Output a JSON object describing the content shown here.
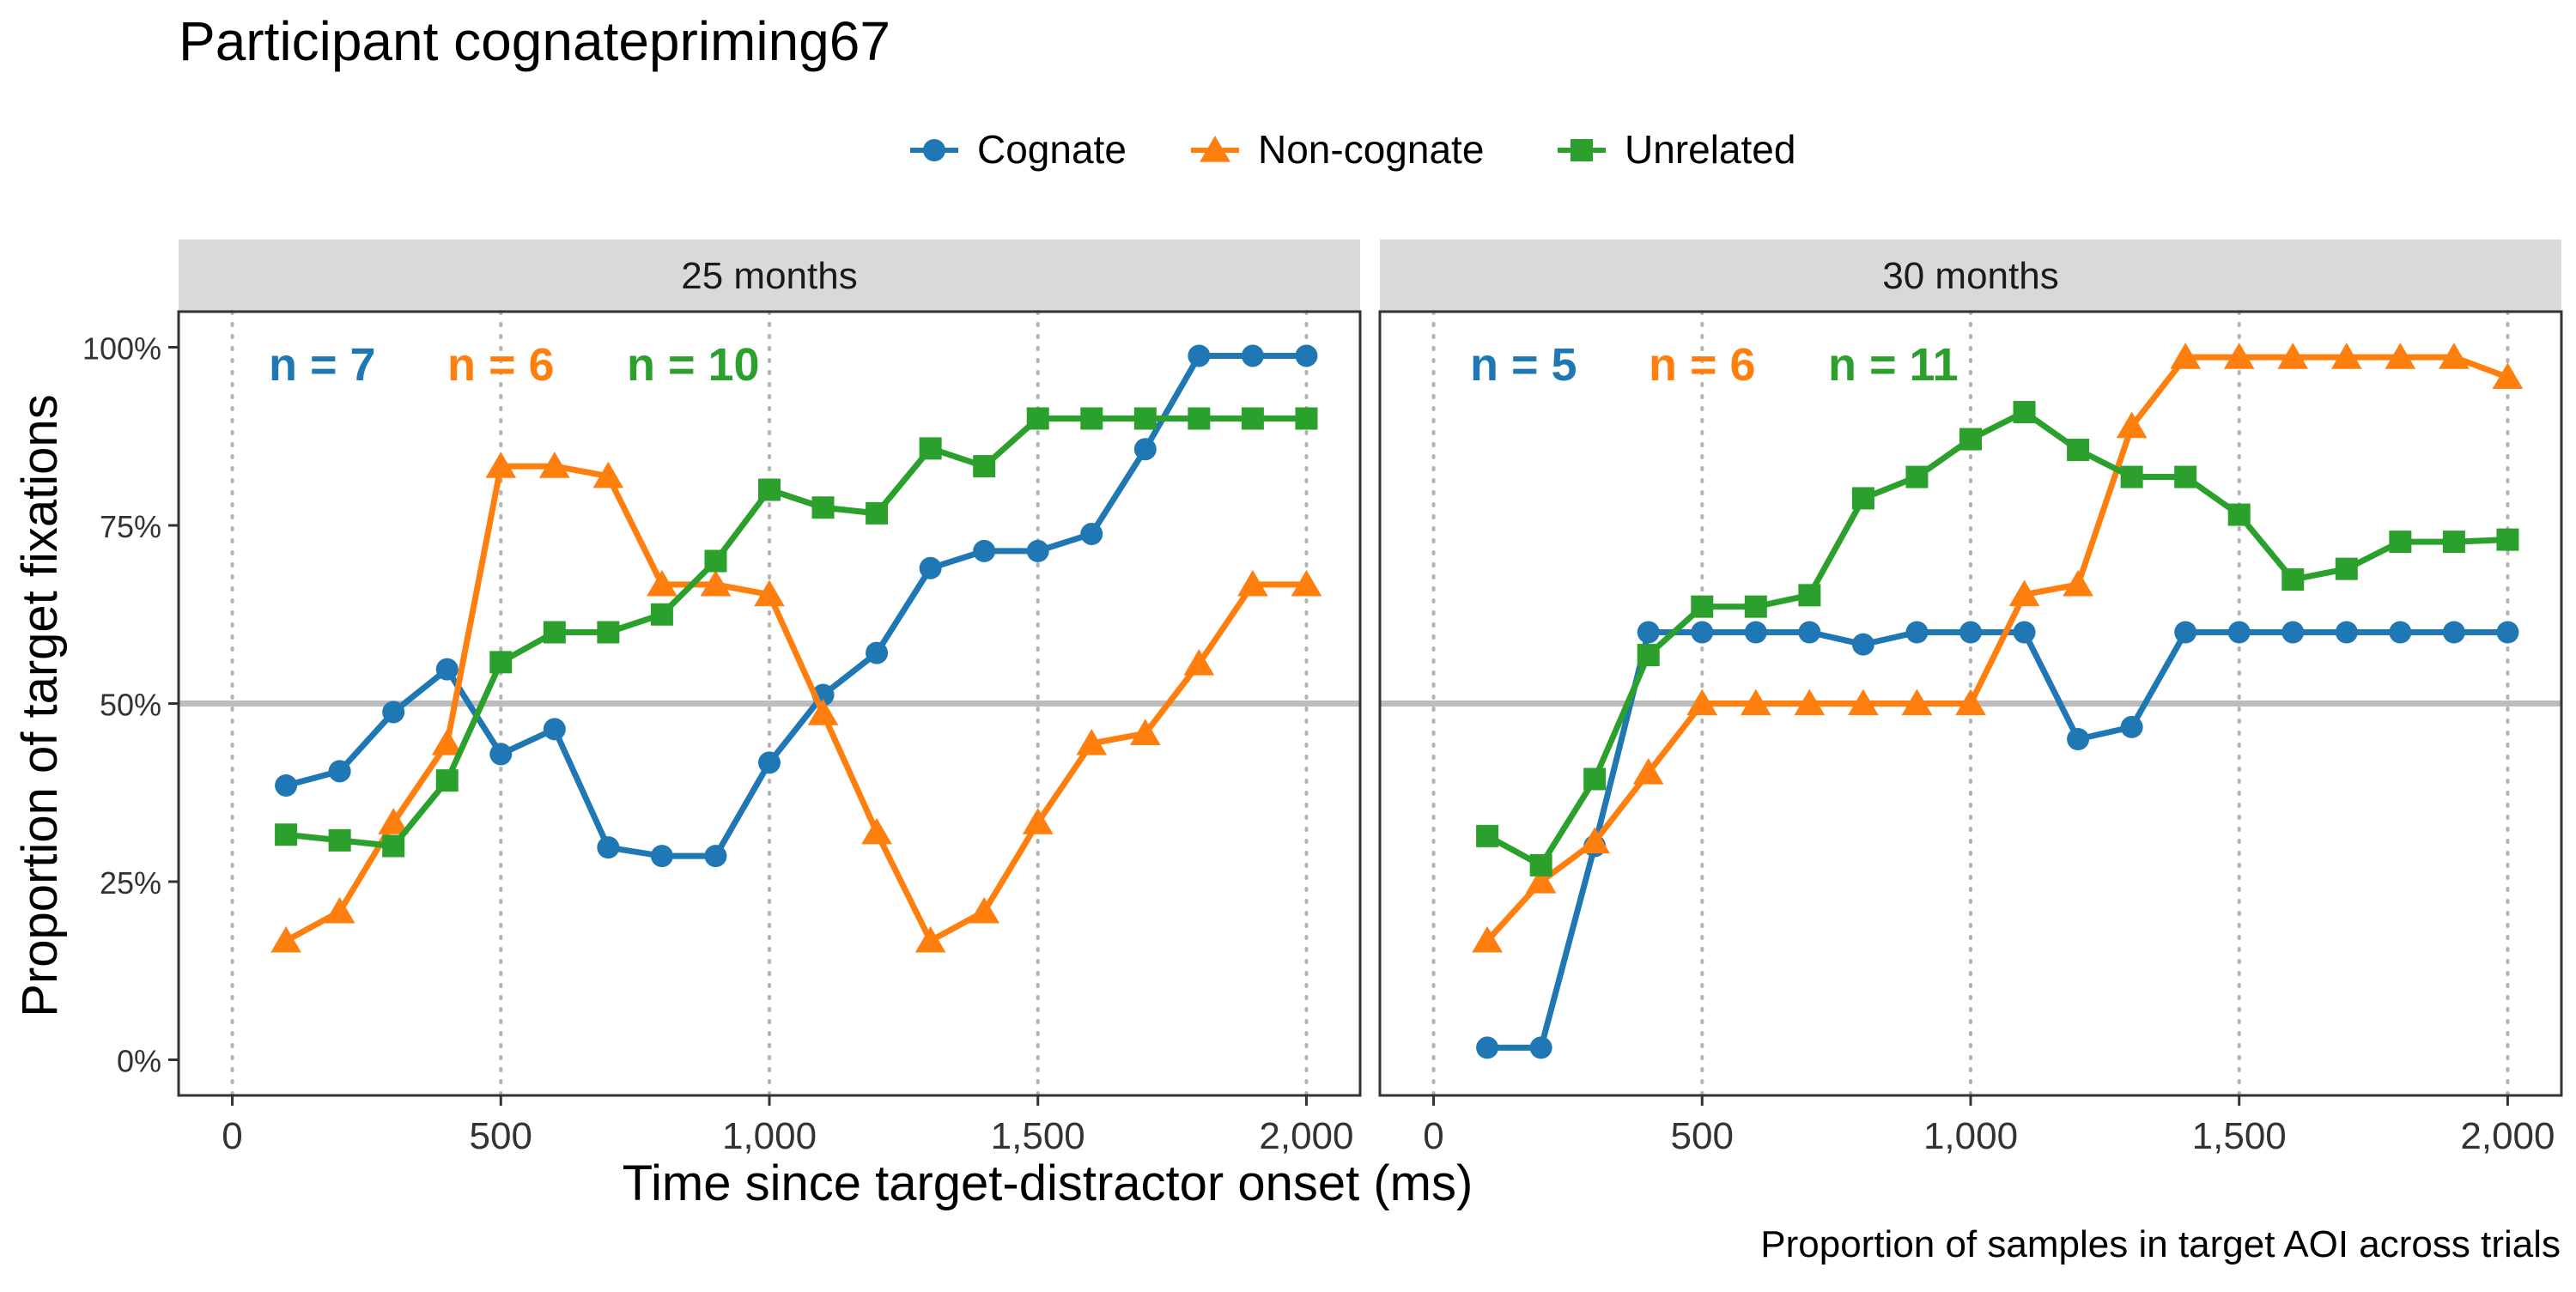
{
  "chart_data": {
    "type": "line",
    "title": "Participant cognatepriming67",
    "xlabel": "Time since target-distractor onset (ms)",
    "ylabel": "Proportion of target fixations",
    "caption": "Proportion of samples in target AOI across trials",
    "legend_position": "top",
    "xlim": [
      -100,
      2100
    ],
    "ylim": [
      -0.05,
      1.05
    ],
    "x_ticks": [
      0,
      500,
      1000,
      1500,
      2000
    ],
    "x_tick_labels": [
      "0",
      "500",
      "1,000",
      "1,500",
      "2,000"
    ],
    "y_ticks": [
      0,
      0.25,
      0.5,
      0.75,
      1.0
    ],
    "y_tick_labels": [
      "0%",
      "25%",
      "50%",
      "75%",
      "100%"
    ],
    "reference_line_y": 0.5,
    "vertical_guides_x": [
      0,
      500,
      1000,
      1500,
      2000
    ],
    "x": [
      100,
      200,
      300,
      400,
      500,
      600,
      700,
      800,
      900,
      1000,
      1100,
      1200,
      1300,
      1400,
      1500,
      1600,
      1700,
      1800,
      1900,
      2000
    ],
    "legend": [
      {
        "name": "Cognate",
        "color": "#1f77b4",
        "shape": "circle"
      },
      {
        "name": "Non-cognate",
        "color": "#ff7f0e",
        "shape": "triangle"
      },
      {
        "name": "Unrelated",
        "color": "#2ca02c",
        "shape": "square"
      }
    ],
    "panels": [
      {
        "label": "25 months",
        "counts": [
          {
            "text": "n = 7",
            "color": "#1f77b4"
          },
          {
            "text": "n = 6",
            "color": "#ff7f0e"
          },
          {
            "text": "n = 10",
            "color": "#2ca02c"
          }
        ],
        "series": [
          {
            "name": "Cognate",
            "color": "#1f77b4",
            "shape": "circle",
            "values": [
              0.385,
              0.405,
              0.488,
              0.548,
              0.429,
              0.464,
              0.298,
              0.286,
              0.286,
              0.417,
              0.512,
              0.571,
              0.69,
              0.714,
              0.714,
              0.738,
              0.857,
              0.988,
              0.988,
              0.988
            ]
          },
          {
            "name": "Non-cognate",
            "color": "#ff7f0e",
            "shape": "triangle",
            "values": [
              0.167,
              0.208,
              0.333,
              0.444,
              0.833,
              0.833,
              0.819,
              0.667,
              0.667,
              0.653,
              0.486,
              0.319,
              0.167,
              0.208,
              0.333,
              0.444,
              0.458,
              0.556,
              0.667,
              0.667
            ]
          },
          {
            "name": "Unrelated",
            "color": "#2ca02c",
            "shape": "square",
            "values": [
              0.316,
              0.308,
              0.3,
              0.392,
              0.558,
              0.6,
              0.6,
              0.625,
              0.7,
              0.8,
              0.775,
              0.767,
              0.858,
              0.833,
              0.9,
              0.9,
              0.9,
              0.9,
              0.9,
              0.9
            ]
          }
        ]
      },
      {
        "label": "30 months",
        "counts": [
          {
            "text": "n = 5",
            "color": "#1f77b4"
          },
          {
            "text": "n = 6",
            "color": "#ff7f0e"
          },
          {
            "text": "n = 11",
            "color": "#2ca02c"
          }
        ],
        "series": [
          {
            "name": "Cognate",
            "color": "#1f77b4",
            "shape": "circle",
            "values": [
              0.017,
              0.017,
              0.3,
              0.6,
              0.6,
              0.6,
              0.6,
              0.583,
              0.6,
              0.6,
              0.6,
              0.45,
              0.467,
              0.6,
              0.6,
              0.6,
              0.6,
              0.6,
              0.6,
              0.6
            ]
          },
          {
            "name": "Non-cognate",
            "color": "#ff7f0e",
            "shape": "triangle",
            "values": [
              0.167,
              0.25,
              0.306,
              0.403,
              0.5,
              0.5,
              0.5,
              0.5,
              0.5,
              0.5,
              0.653,
              0.667,
              0.889,
              0.986,
              0.986,
              0.986,
              0.986,
              0.986,
              0.986,
              0.958
            ]
          },
          {
            "name": "Unrelated",
            "color": "#2ca02c",
            "shape": "square",
            "values": [
              0.314,
              0.273,
              0.394,
              0.568,
              0.636,
              0.636,
              0.652,
              0.788,
              0.818,
              0.871,
              0.909,
              0.856,
              0.818,
              0.818,
              0.765,
              0.674,
              0.689,
              0.727,
              0.727,
              0.73
            ]
          }
        ]
      }
    ]
  }
}
